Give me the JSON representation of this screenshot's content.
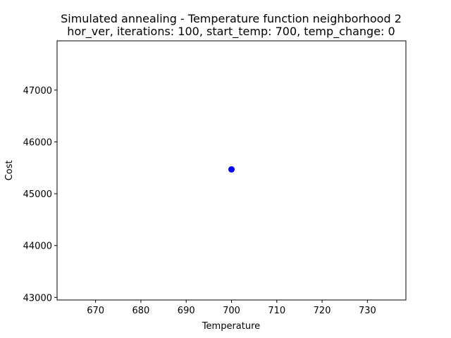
{
  "chart_data": {
    "type": "scatter",
    "title": [
      "Simulated annealing - Temperature function neighborhood 2",
      "hor_ver, iterations: 100, start_temp: 700, temp_change: 0"
    ],
    "xlabel": "Temperature",
    "ylabel": "Cost",
    "xlim": [
      661.5,
      738.5
    ],
    "ylim": [
      42950,
      47950
    ],
    "xticks": [
      670,
      680,
      690,
      700,
      710,
      720,
      730
    ],
    "yticks": [
      43000,
      44000,
      45000,
      46000,
      47000
    ],
    "series": [
      {
        "x": [
          700
        ],
        "y": [
          45470
        ],
        "color": "#0000ff"
      }
    ],
    "grid": false
  }
}
